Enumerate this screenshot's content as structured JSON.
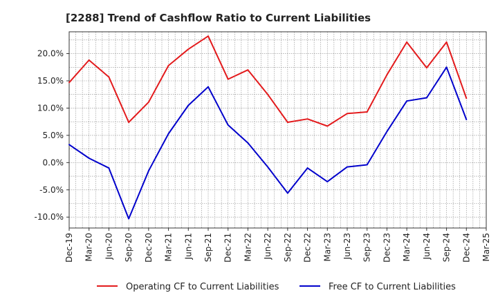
{
  "chart_data": {
    "type": "line",
    "title": "[2288]  Trend of Cashflow Ratio to Current Liabilities",
    "xlabel": "",
    "ylabel": "",
    "x": [
      "Dec-19",
      "Mar-20",
      "Jun-20",
      "Sep-20",
      "Dec-20",
      "Mar-21",
      "Jun-21",
      "Sep-21",
      "Dec-21",
      "Mar-22",
      "Jun-22",
      "Sep-22",
      "Dec-22",
      "Mar-23",
      "Jun-23",
      "Sep-23",
      "Dec-23",
      "Mar-24",
      "Jun-24",
      "Sep-24",
      "Dec-24",
      "Mar-25"
    ],
    "ylim": [
      -12.0,
      24.0
    ],
    "yticks": [
      -10.0,
      -5.0,
      0.0,
      5.0,
      10.0,
      15.0,
      20.0
    ],
    "ytick_labels": [
      "-10.0%",
      "-5.0%",
      "0.0%",
      "5.0%",
      "10.0%",
      "15.0%",
      "20.0%"
    ],
    "grid": true,
    "legend_position": "bottom",
    "series": [
      {
        "name": "Operating CF to Current Liabilities",
        "color": "#e31a1c",
        "values": [
          14.7,
          18.8,
          15.7,
          7.4,
          11.1,
          17.8,
          20.8,
          23.2,
          15.3,
          17.0,
          12.5,
          7.4,
          8.0,
          6.7,
          9.0,
          9.3,
          16.1,
          22.1,
          17.4,
          22.1,
          11.8,
          null
        ]
      },
      {
        "name": "Free CF to Current Liabilities",
        "color": "#0000cc",
        "values": [
          3.3,
          0.8,
          -1.0,
          -10.3,
          -1.5,
          5.3,
          10.5,
          13.9,
          6.9,
          3.6,
          -0.8,
          -5.6,
          -1.0,
          -3.5,
          -0.8,
          -0.4,
          5.7,
          11.3,
          11.9,
          17.5,
          7.9,
          null
        ]
      }
    ]
  }
}
